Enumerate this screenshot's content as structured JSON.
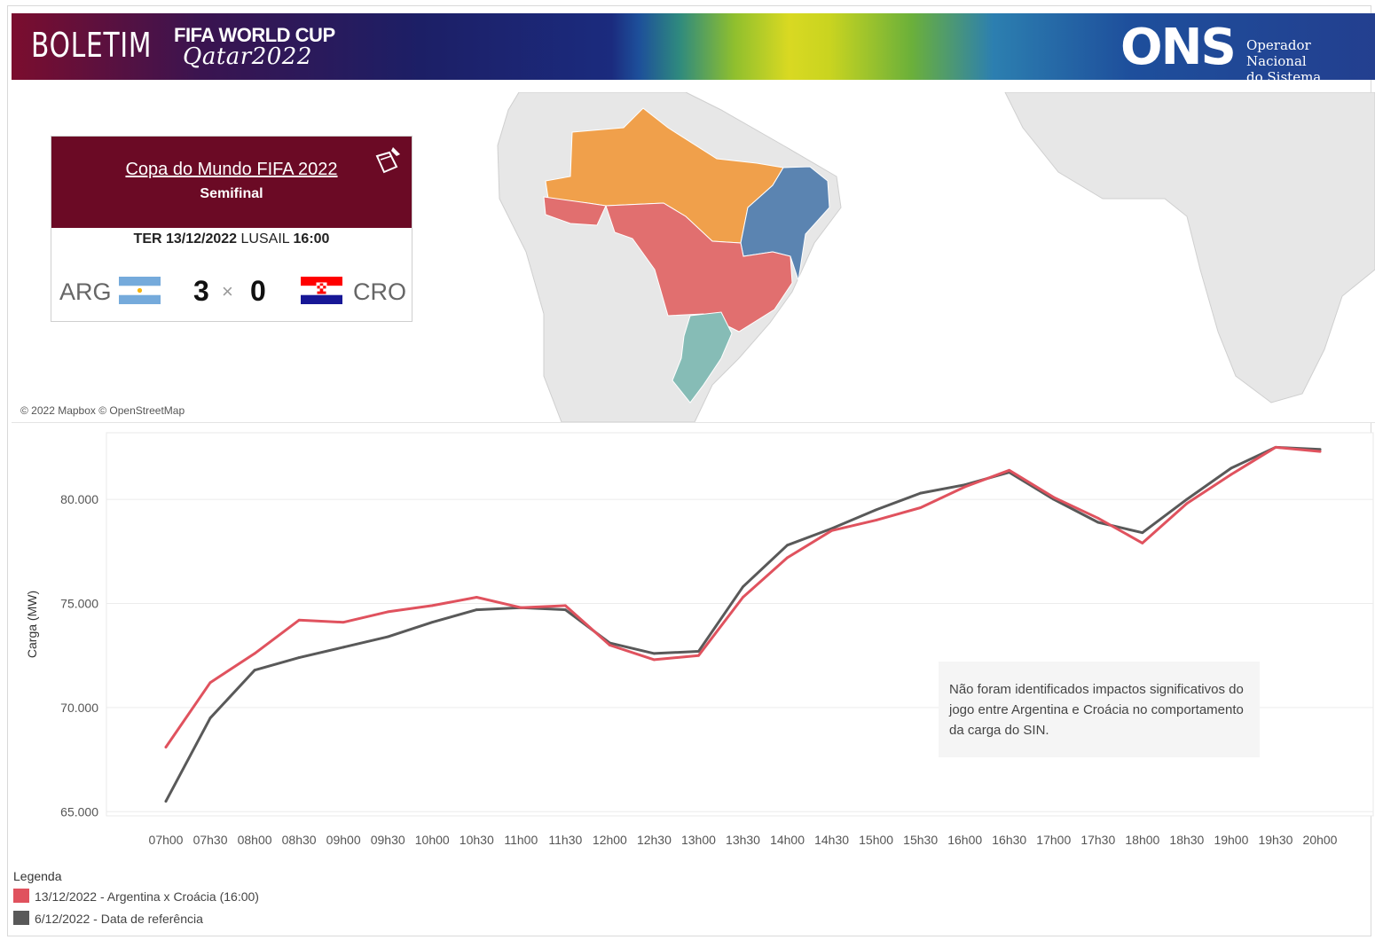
{
  "banner": {
    "boletim": "BOLETIM",
    "event_title": "FIFA WORLD CUP",
    "event_sub": "Qatar2022",
    "org_logo": "ONS",
    "org_name_line1": "Operador Nacional",
    "org_name_line2": "do Sistema Elétrico"
  },
  "map": {
    "attribution": "© 2022 Mapbox © OpenStreetMap",
    "region_colors": {
      "norte": "#f0a04b",
      "nordeste": "#5b84b1",
      "sudeste_centro_oeste": "#e16f6f",
      "sul": "#86bcb6",
      "acre_rondonia": "#e16f6f"
    }
  },
  "match": {
    "title": "Copa do Mundo FIFA 2022",
    "stage": "Semifinal",
    "day": "TER",
    "date": "13/12/2022",
    "venue": "LUSAIL",
    "time": "16:00",
    "home": "ARG",
    "away": "CRO",
    "home_score": "3",
    "away_score": "0",
    "separator": "×"
  },
  "chart_data": {
    "type": "line",
    "ylabel": "Carga (MW)",
    "xlabel": "",
    "ylim": [
      64800,
      83200
    ],
    "yticks": [
      65000,
      70000,
      75000,
      80000
    ],
    "ytick_labels": [
      "65.000",
      "70.000",
      "75.000",
      "80.000"
    ],
    "categories": [
      "07h00",
      "07h30",
      "08h00",
      "08h30",
      "09h00",
      "09h30",
      "10h00",
      "10h30",
      "11h00",
      "11h30",
      "12h00",
      "12h30",
      "13h00",
      "13h30",
      "14h00",
      "14h30",
      "15h00",
      "15h30",
      "16h00",
      "16h30",
      "17h00",
      "17h30",
      "18h00",
      "18h30",
      "19h00",
      "19h30",
      "20h00"
    ],
    "grid": true,
    "series": [
      {
        "name": "13/12/2022 - Argentina x Croácia (16:00)",
        "color": "#e0525e",
        "values": [
          68100,
          71200,
          72600,
          74200,
          74100,
          74600,
          74900,
          75300,
          74800,
          74900,
          73000,
          72300,
          72500,
          75300,
          77200,
          78500,
          79000,
          79600,
          80600,
          81400,
          80100,
          79100,
          77900,
          79800,
          81200,
          82500,
          82300
        ]
      },
      {
        "name": "6/12/2022 - Data de referência",
        "color": "#595959",
        "values": [
          65500,
          69500,
          71800,
          72400,
          72900,
          73400,
          74100,
          74700,
          74800,
          74700,
          73100,
          72600,
          72700,
          75800,
          77800,
          78600,
          79500,
          80300,
          80700,
          81300,
          80000,
          78900,
          78400,
          80000,
          81500,
          82500,
          82400
        ]
      }
    ],
    "annotation": "Não foram identificados impactos significativos do jogo entre Argentina e Croácia no comportamento da carga do SIN.",
    "legend_title": "Legenda",
    "legend_position": "bottom-left"
  }
}
